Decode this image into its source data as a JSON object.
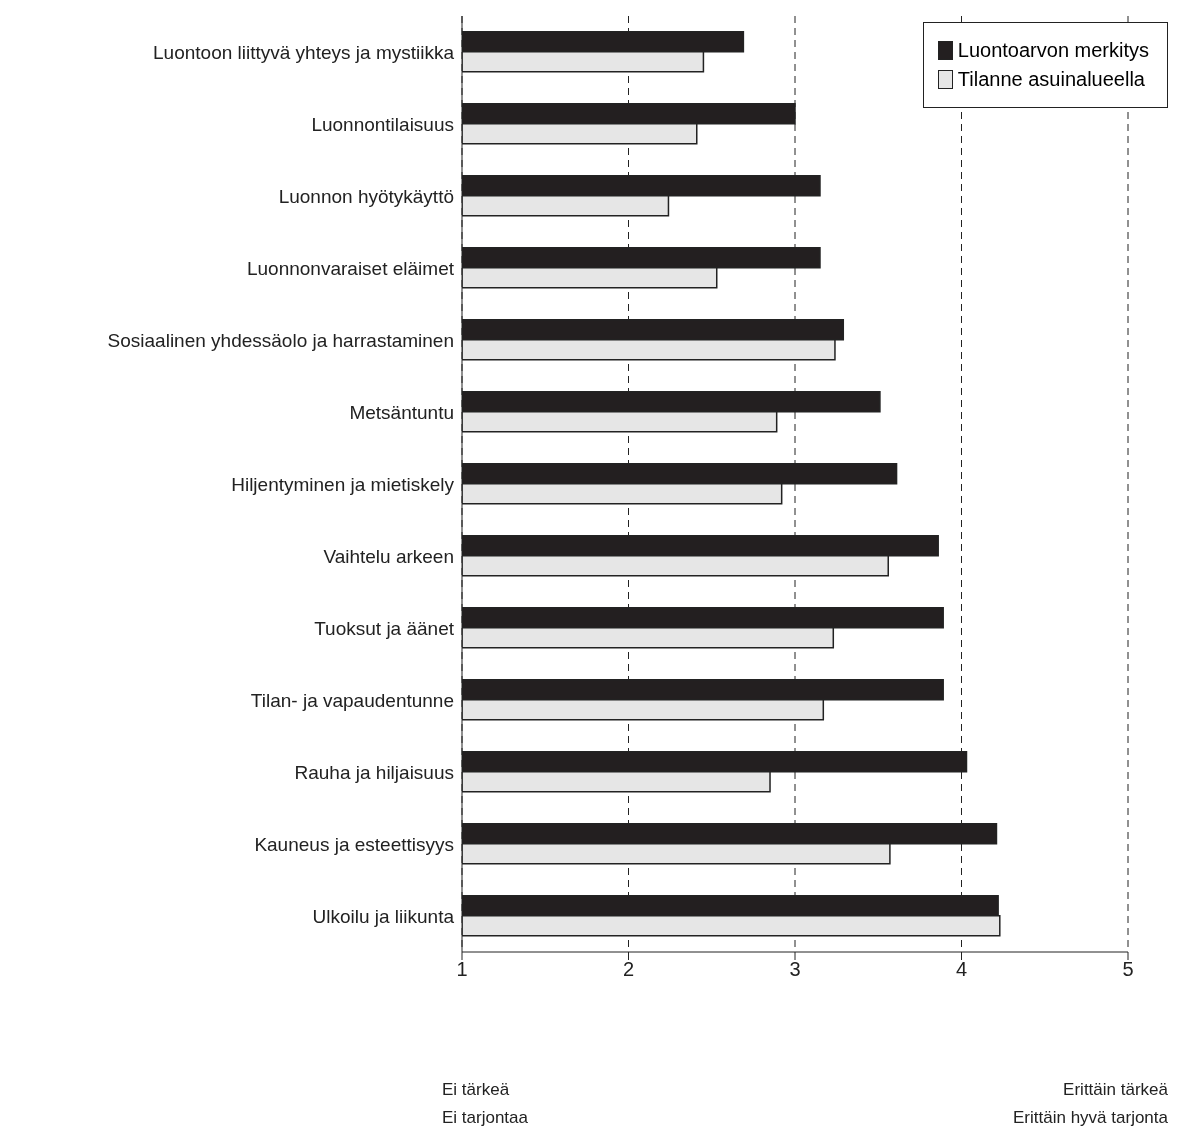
{
  "chart_data": {
    "type": "bar",
    "orientation": "horizontal",
    "categories": [
      "Luontoon liittyvä yhteys ja mystiikka",
      "Luonnontilaisuus",
      "Luonnon hyötykäyttö",
      "Luonnonvaraiset eläimet",
      "Sosiaalinen yhdessäolo ja harrastaminen",
      "Metsäntuntu",
      "Hiljentyminen ja mietiskely",
      "Vaihtelu arkeen",
      "Tuoksut ja äänet",
      "Tilan- ja vapaudentunne",
      "Rauha ja hiljaisuus",
      "Kauneus ja esteettisyys",
      "Ulkoilu ja liikunta"
    ],
    "series": [
      {
        "name": "Luontoarvon merkitys",
        "color": "#231f20",
        "values": [
          2.69,
          3.0,
          3.15,
          3.15,
          3.29,
          3.51,
          3.61,
          3.86,
          3.89,
          3.89,
          4.03,
          4.21,
          4.22
        ]
      },
      {
        "name": "Tilanne asuinalueella",
        "color": "#e6e6e6",
        "values": [
          2.45,
          2.41,
          2.24,
          2.53,
          3.24,
          2.89,
          2.92,
          3.56,
          3.23,
          3.17,
          2.85,
          3.57,
          4.23
        ]
      }
    ],
    "xlim": [
      1,
      5
    ],
    "xticks": [
      1,
      2,
      3,
      4,
      5
    ],
    "grid": "x",
    "legend": "top right",
    "annotations": [
      "Ei tärkeä\nEi tarjontaa",
      "Erittäin tärkeä\nErittäin hyvä tarjonta"
    ]
  }
}
